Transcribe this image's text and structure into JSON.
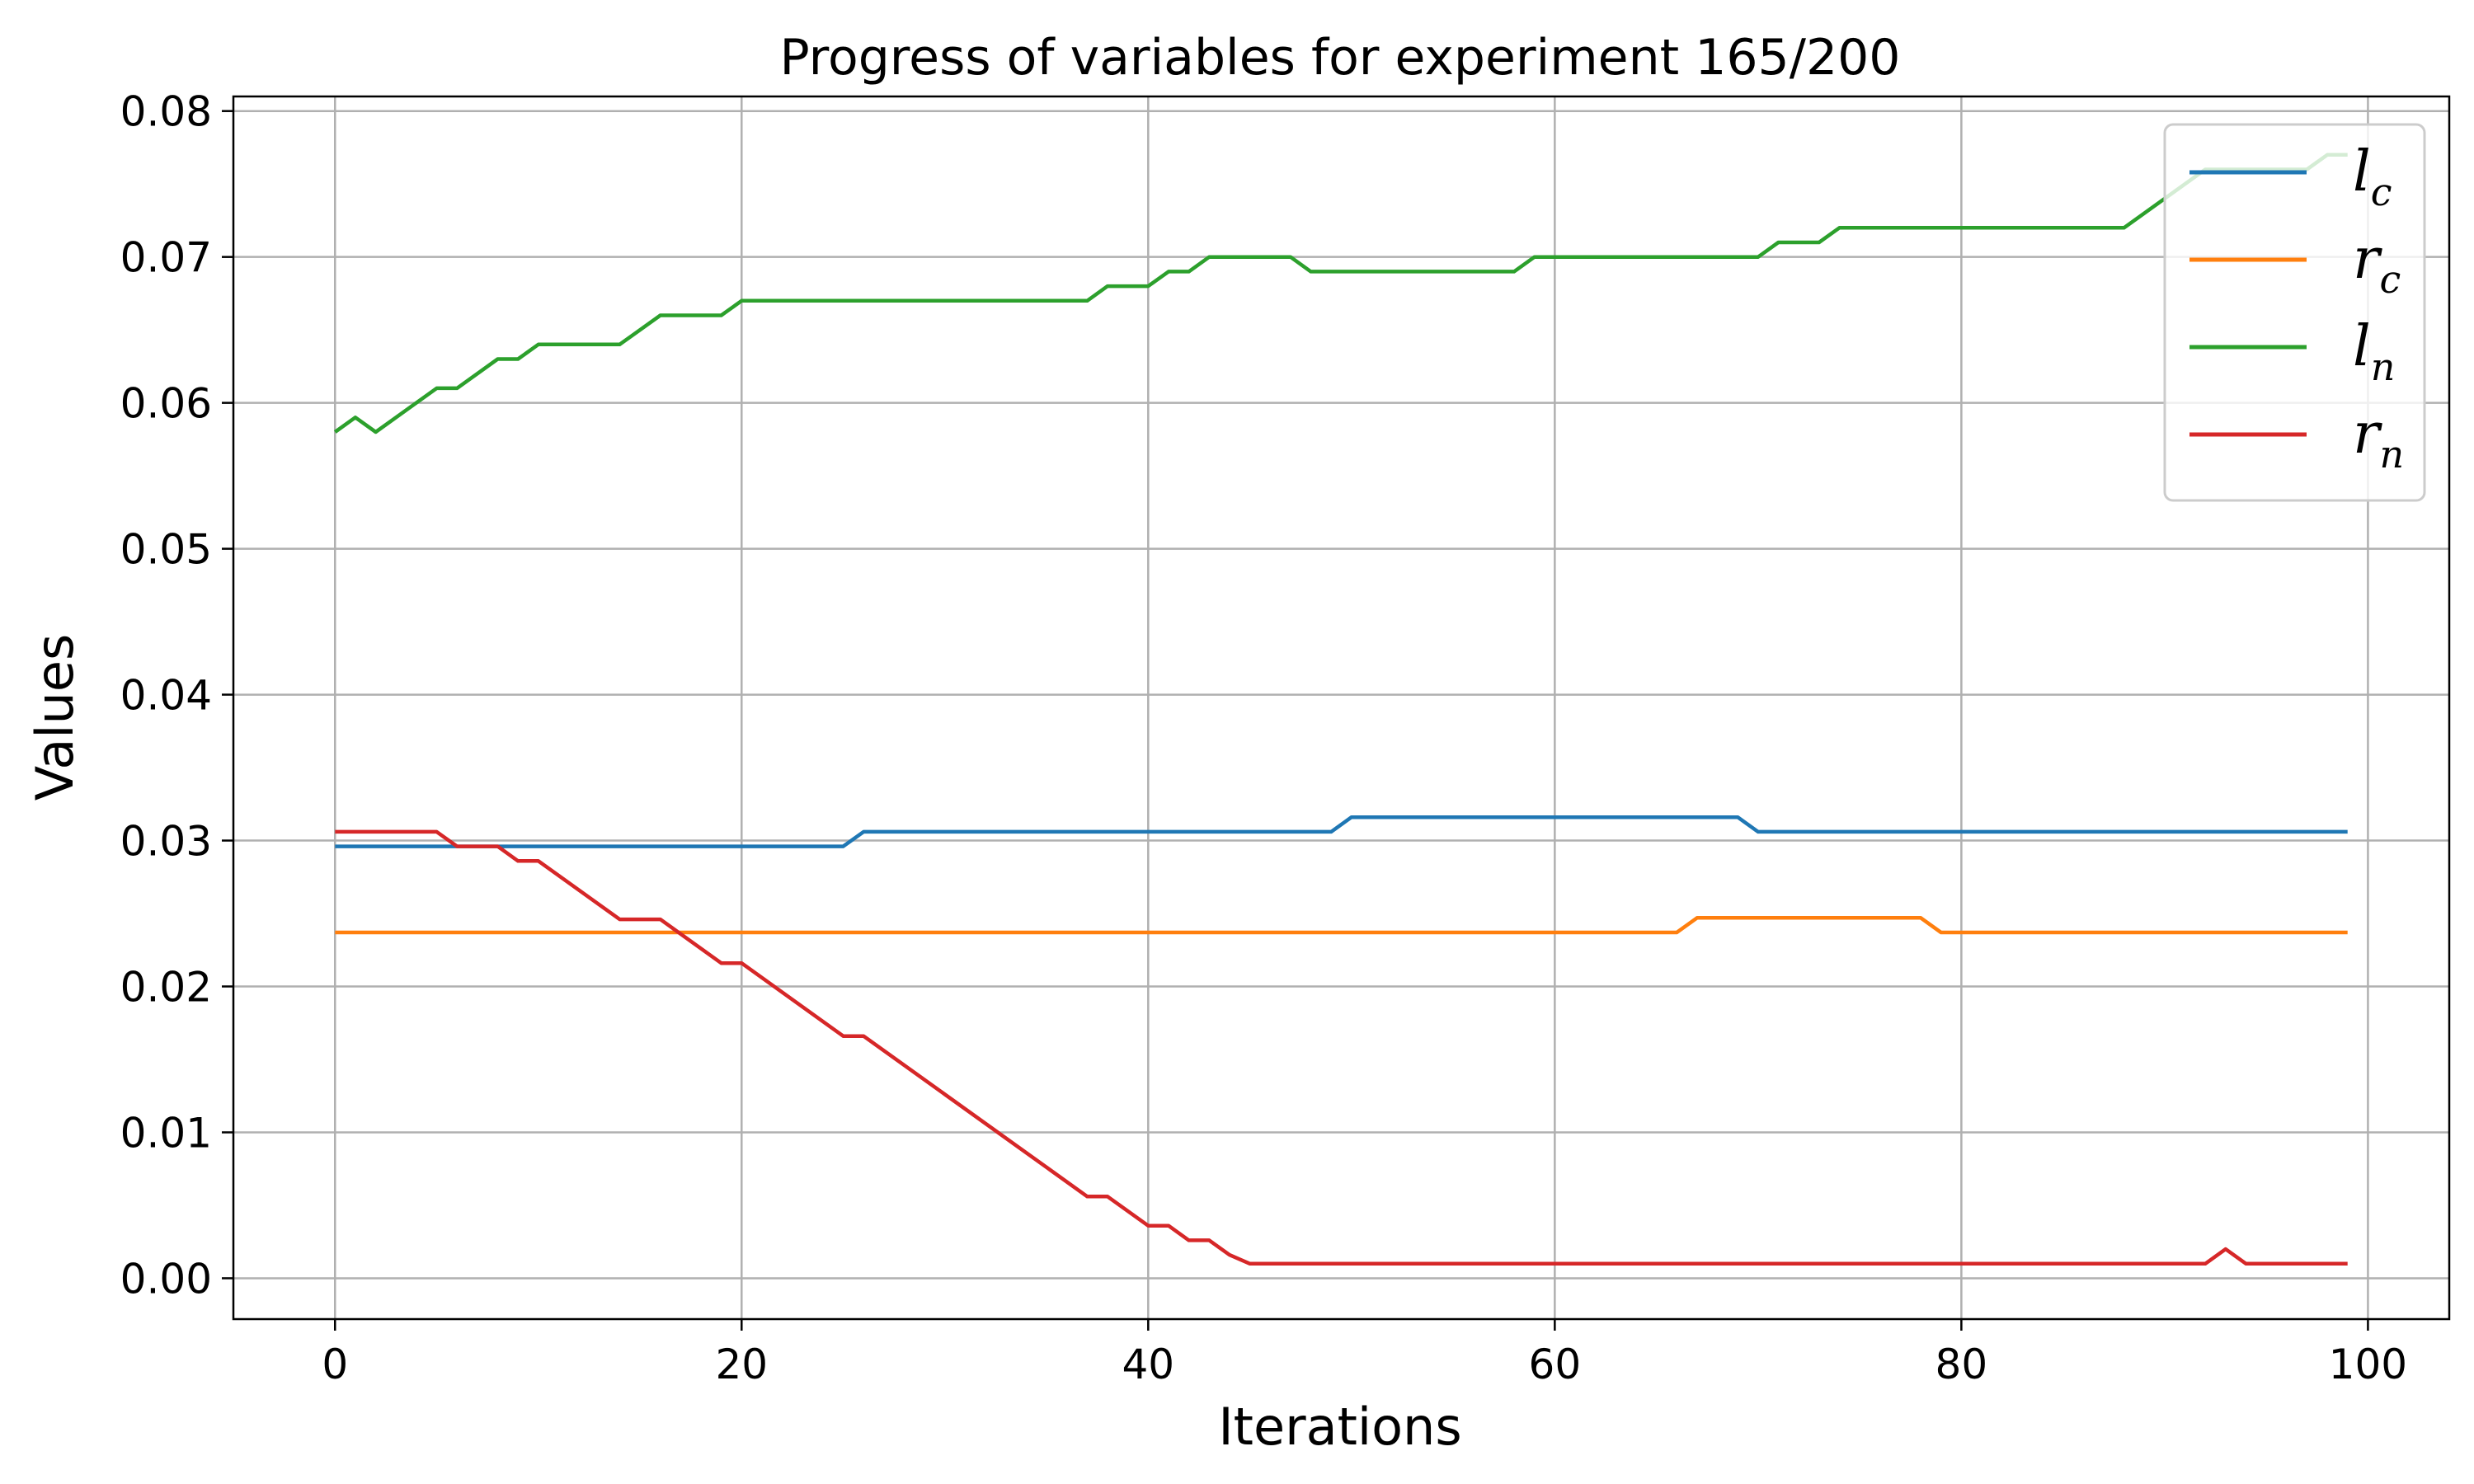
{
  "chart_data": {
    "type": "line",
    "title": "Progress of variables for experiment 165/200",
    "xlabel": "Iterations",
    "ylabel": "Values",
    "xlim": [
      -5,
      104
    ],
    "ylim": [
      -0.0028,
      0.081
    ],
    "x_ticks": [
      0,
      20,
      40,
      60,
      80,
      100
    ],
    "x_tick_labels": [
      "0",
      "20",
      "40",
      "60",
      "80",
      "100"
    ],
    "y_ticks": [
      0,
      0.01,
      0.02,
      0.03,
      0.04,
      0.05,
      0.06,
      0.07,
      0.08
    ],
    "y_tick_labels": [
      "0.00",
      "0.01",
      "0.02",
      "0.03",
      "0.04",
      "0.05",
      "0.06",
      "0.07",
      "0.08"
    ],
    "grid": true,
    "legend_position": "top-right",
    "series": [
      {
        "name": "l_c",
        "label_main": "l",
        "label_sub": "c",
        "color": "#1f77b4",
        "points": [
          [
            0,
            0.0296
          ],
          [
            25,
            0.0296
          ],
          [
            26,
            0.0306
          ],
          [
            49,
            0.0306
          ],
          [
            50,
            0.0316
          ],
          [
            69,
            0.0316
          ],
          [
            70,
            0.0306
          ],
          [
            99,
            0.0306
          ]
        ]
      },
      {
        "name": "r_c",
        "label_main": "r",
        "label_sub": "c",
        "color": "#ff7f0e",
        "points": [
          [
            0,
            0.0237
          ],
          [
            66,
            0.0237
          ],
          [
            67,
            0.0247
          ],
          [
            78,
            0.0247
          ],
          [
            79,
            0.0237
          ],
          [
            99,
            0.0237
          ]
        ]
      },
      {
        "name": "l_n",
        "label_main": "l",
        "label_sub": "n",
        "color": "#2ca02c",
        "points": [
          [
            0,
            0.058
          ],
          [
            1,
            0.059
          ],
          [
            2,
            0.058
          ],
          [
            5,
            0.061
          ],
          [
            6,
            0.061
          ],
          [
            8,
            0.063
          ],
          [
            9,
            0.063
          ],
          [
            10,
            0.064
          ],
          [
            14,
            0.064
          ],
          [
            16,
            0.066
          ],
          [
            19,
            0.066
          ],
          [
            20,
            0.067
          ],
          [
            37,
            0.067
          ],
          [
            38,
            0.068
          ],
          [
            40,
            0.068
          ],
          [
            41,
            0.069
          ],
          [
            42,
            0.069
          ],
          [
            43,
            0.07
          ],
          [
            47,
            0.07
          ],
          [
            48,
            0.069
          ],
          [
            58,
            0.069
          ],
          [
            59,
            0.07
          ],
          [
            70,
            0.07
          ],
          [
            71,
            0.071
          ],
          [
            73,
            0.071
          ],
          [
            74,
            0.072
          ],
          [
            88,
            0.072
          ],
          [
            92,
            0.076
          ],
          [
            97,
            0.076
          ],
          [
            98,
            0.077
          ],
          [
            99,
            0.077
          ]
        ]
      },
      {
        "name": "r_n",
        "label_main": "r",
        "label_sub": "n",
        "color": "#d62728",
        "points": [
          [
            0,
            0.0306
          ],
          [
            5,
            0.0306
          ],
          [
            6,
            0.0296
          ],
          [
            8,
            0.0296
          ],
          [
            9,
            0.0286
          ],
          [
            10,
            0.0286
          ],
          [
            14,
            0.0246
          ],
          [
            16,
            0.0246
          ],
          [
            19,
            0.0216
          ],
          [
            20,
            0.0216
          ],
          [
            25,
            0.0166
          ],
          [
            26,
            0.0166
          ],
          [
            37,
            0.0056
          ],
          [
            38,
            0.0056
          ],
          [
            40,
            0.0036
          ],
          [
            41,
            0.0036
          ],
          [
            42,
            0.0026
          ],
          [
            43,
            0.0026
          ],
          [
            44,
            0.0016
          ],
          [
            45,
            0.001
          ],
          [
            92,
            0.001
          ],
          [
            93,
            0.002
          ],
          [
            94,
            0.001
          ],
          [
            99,
            0.001
          ]
        ]
      }
    ]
  }
}
